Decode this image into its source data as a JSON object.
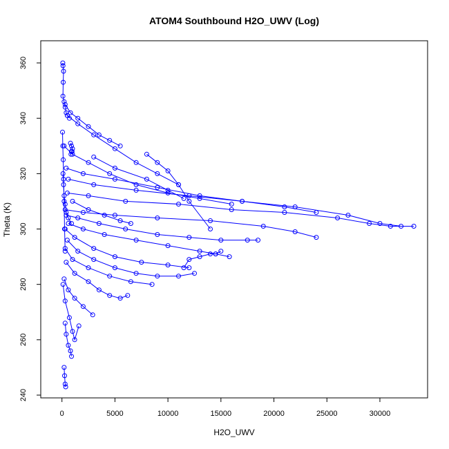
{
  "chart_data": {
    "type": "line",
    "title": "ATOM4 Southbound H2O_UWV (Log)",
    "xlabel": "H2O_UWV",
    "ylabel": "Theta (K)",
    "xlim": [
      -2000,
      34500
    ],
    "ylim": [
      239,
      368
    ],
    "x_ticks": [
      0,
      5000,
      10000,
      15000,
      20000,
      25000,
      30000
    ],
    "x_tick_labels": [
      "0",
      "5000",
      "10000",
      "15000",
      "20000",
      "25000",
      "30000"
    ],
    "y_ticks": [
      240,
      260,
      280,
      300,
      320,
      340,
      360
    ],
    "y_tick_labels": [
      "240",
      "260",
      "280",
      "300",
      "320",
      "340",
      "360"
    ],
    "grid": false,
    "marker": "open-circle",
    "color": "#0000ff",
    "series": [
      {
        "x": [
          80,
          100,
          150,
          120,
          90,
          200,
          300,
          400,
          500,
          700
        ],
        "y": [
          360,
          359,
          357,
          353,
          348,
          346,
          344,
          342,
          341,
          340
        ]
      },
      {
        "x": [
          300,
          800,
          1500,
          2500,
          3500,
          4500,
          5500
        ],
        "y": [
          345,
          342,
          340,
          337,
          334,
          332,
          330
        ]
      },
      {
        "x": [
          500,
          1500,
          3000,
          5000,
          7000,
          9000,
          11000
        ],
        "y": [
          341,
          338,
          334,
          329,
          324,
          320,
          316
        ]
      },
      {
        "x": [
          200,
          1000,
          2500,
          4500,
          7000,
          10000,
          13000,
          16000
        ],
        "y": [
          330,
          327,
          324,
          320,
          316,
          313,
          311,
          309
        ]
      },
      {
        "x": [
          400,
          2000,
          5000,
          9000,
          13000,
          17000,
          21000,
          24000
        ],
        "y": [
          322,
          320,
          318,
          315,
          312,
          310,
          308,
          306
        ]
      },
      {
        "x": [
          600,
          3000,
          7000,
          12000,
          17000,
          22000,
          27000,
          30000,
          32000
        ],
        "y": [
          318,
          316,
          314,
          312,
          310,
          308,
          305,
          302,
          301
        ]
      },
      {
        "x": [
          500,
          2500,
          6000,
          11000,
          16000,
          21000,
          26000,
          29000,
          31000,
          33200
        ],
        "y": [
          313,
          312,
          310,
          309,
          307,
          306,
          304,
          302,
          301,
          301
        ]
      },
      {
        "x": [
          300,
          2000,
          5000,
          9000,
          14000,
          19000,
          22000,
          24000
        ],
        "y": [
          307,
          306,
          305,
          304,
          303,
          301,
          299,
          297
        ]
      },
      {
        "x": [
          400,
          1500,
          3500,
          6000,
          9000,
          12000,
          15000,
          17500,
          18500
        ],
        "y": [
          305,
          304,
          302,
          300,
          298,
          297,
          296,
          296,
          296
        ]
      },
      {
        "x": [
          600,
          2000,
          4000,
          7000,
          10000,
          13000,
          14500,
          15800
        ],
        "y": [
          302,
          300,
          298,
          296,
          294,
          292,
          291,
          290
        ]
      },
      {
        "x": [
          300,
          1200,
          3000,
          5000,
          7500,
          10000,
          12000
        ],
        "y": [
          300,
          297,
          293,
          290,
          288,
          287,
          286
        ]
      },
      {
        "x": [
          500,
          1500,
          3000,
          5000,
          7000,
          9000,
          11000,
          12500
        ],
        "y": [
          296,
          292,
          289,
          286,
          284,
          283,
          283,
          284
        ]
      },
      {
        "x": [
          300,
          1000,
          2500,
          4500,
          6500,
          8500
        ],
        "y": [
          293,
          289,
          286,
          283,
          281,
          280
        ]
      },
      {
        "x": [
          400,
          1200,
          2500,
          3500,
          4500,
          5500,
          6200
        ],
        "y": [
          288,
          284,
          281,
          278,
          276,
          275,
          276
        ]
      },
      {
        "x": [
          200,
          600,
          1200,
          2000,
          2900
        ],
        "y": [
          282,
          278,
          275,
          272,
          269
        ]
      },
      {
        "x": [
          100,
          300,
          700,
          1000,
          1200,
          1600
        ],
        "y": [
          280,
          274,
          268,
          263,
          260,
          265
        ]
      },
      {
        "x": [
          300,
          400,
          600,
          800,
          900
        ],
        "y": [
          266,
          262,
          258,
          256,
          254
        ]
      },
      {
        "x": [
          200,
          250,
          300,
          350
        ],
        "y": [
          250,
          247,
          244,
          243
        ]
      },
      {
        "x": [
          100,
          150,
          200,
          300,
          400,
          600,
          900
        ],
        "y": [
          320,
          316,
          312,
          309,
          306,
          304,
          302
        ]
      },
      {
        "x": [
          800,
          900,
          1000,
          950,
          850,
          900
        ],
        "y": [
          331,
          330,
          329,
          328,
          327,
          328
        ]
      },
      {
        "x": [
          50,
          80,
          120,
          150,
          200,
          250,
          300
        ],
        "y": [
          335,
          330,
          325,
          318,
          310,
          300,
          292
        ]
      },
      {
        "x": [
          1000,
          2500,
          4000,
          5500,
          6500
        ],
        "y": [
          310,
          307,
          305,
          303,
          302
        ]
      },
      {
        "x": [
          3000,
          5000,
          8000,
          10000,
          11500
        ],
        "y": [
          326,
          322,
          318,
          314,
          311
        ]
      },
      {
        "x": [
          8000,
          9000,
          10000,
          11000,
          12000,
          14000
        ],
        "y": [
          327,
          324,
          321,
          316,
          310,
          300
        ]
      },
      {
        "x": [
          11500,
          12000,
          13000,
          14000,
          14500,
          15000
        ],
        "y": [
          286,
          289,
          290,
          291,
          291,
          292
        ]
      }
    ]
  }
}
